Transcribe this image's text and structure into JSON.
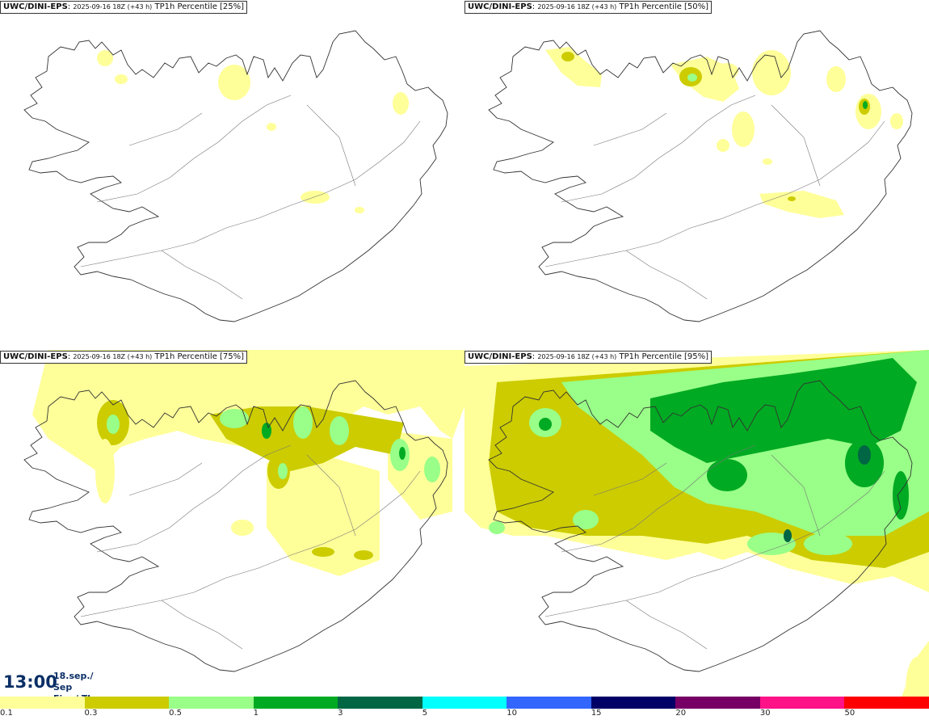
{
  "panels": [
    {
      "id": "p25",
      "model": "UWC/DINI-EPS",
      "run": "2025-09-16 18Z (+43 h)",
      "product": "TP1h Percentile [25%]"
    },
    {
      "id": "p50",
      "model": "UWC/DINI-EPS",
      "run": "2025-09-16 18Z (+43 h)",
      "product": "TP1h Percentile [50%]"
    },
    {
      "id": "p75",
      "model": "UWC/DINI-EPS",
      "run": "2025-09-16 18Z (+43 h)",
      "product": "TP1h Percentile [75%]"
    },
    {
      "id": "p95",
      "model": "UWC/DINI-EPS",
      "run": "2025-09-16 18Z (+43 h)",
      "product": "TP1h Percentile [95%]"
    }
  ],
  "valid_time": {
    "time": "13:00",
    "date_line1": "18.sep./ Sep",
    "date_line2": "Fim./ Thu"
  },
  "legend": {
    "bins": [
      {
        "color": "#ffff99"
      },
      {
        "color": "#cccc00"
      },
      {
        "color": "#99ff88"
      },
      {
        "color": "#00aa22"
      },
      {
        "color": "#006644"
      },
      {
        "color": "#00ffff"
      },
      {
        "color": "#3366ff"
      },
      {
        "color": "#000066"
      },
      {
        "color": "#770066"
      },
      {
        "color": "#ff1188"
      },
      {
        "color": "#ff0000"
      }
    ],
    "ticks": [
      "0.1",
      "0.3",
      "0.5",
      "1",
      "3",
      "5",
      "10",
      "15",
      "20",
      "30",
      "50"
    ]
  },
  "colors": {
    "light": "#ffff99",
    "olive": "#cccc00",
    "lightgreen": "#99ff88",
    "green": "#00aa22",
    "dark": "#006644",
    "coast": "#333333"
  }
}
